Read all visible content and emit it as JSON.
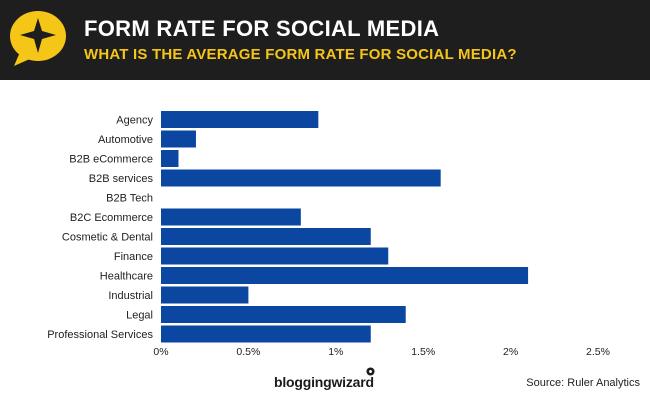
{
  "header": {
    "title": "FORM RATE FOR SOCIAL MEDIA",
    "subtitle": "WHAT IS THE AVERAGE FORM RATE FOR SOCIAL MEDIA?",
    "logo_icon": "star-speech-bubble-icon"
  },
  "footer": {
    "brand": "bloggingwizard",
    "source": "Source: Ruler Analytics"
  },
  "colors": {
    "header_bg": "#1e1e1e",
    "accent_yellow": "#f5c518",
    "bar": "#0b47a1"
  },
  "chart_data": {
    "type": "bar",
    "orientation": "horizontal",
    "categories": [
      "Agency",
      "Automotive",
      "B2B eCommerce",
      "B2B services",
      "B2B Tech",
      "B2C Ecommerce",
      "Cosmetic & Dental",
      "Finance",
      "Healthcare",
      "Industrial",
      "Legal",
      "Professional Services"
    ],
    "values": [
      0.9,
      0.2,
      0.1,
      1.6,
      0,
      0.8,
      1.2,
      1.3,
      2.1,
      0.5,
      1.4,
      1.2
    ],
    "x_ticks": [
      "0%",
      "0.5%",
      "1%",
      "1.5%",
      "2%",
      "2.5%"
    ],
    "xlim": [
      0,
      2.5
    ],
    "unit": "%",
    "grid": false,
    "legend": "none"
  }
}
